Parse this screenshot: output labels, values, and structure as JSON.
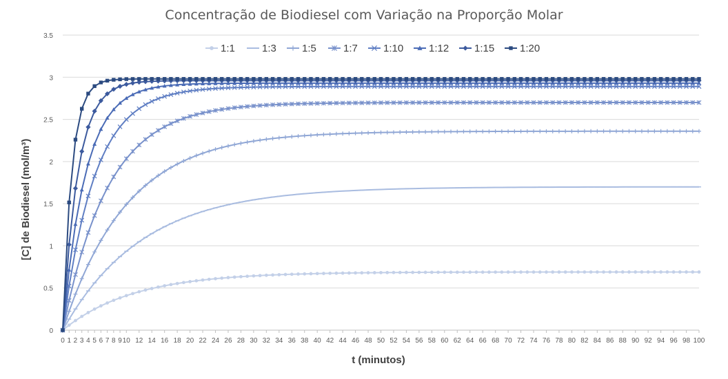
{
  "chart_data": {
    "type": "line",
    "title": "Concentração de Biodiesel com Variação na Proporção Molar",
    "xlabel": "t (minutos)",
    "ylabel": "[C] de Biodiesel (mol/m³)",
    "xlim": [
      0,
      100
    ],
    "ylim": [
      0,
      3.5
    ],
    "x_ticks": [
      0,
      1,
      2,
      3,
      4,
      5,
      6,
      7,
      8,
      9,
      10,
      12,
      14,
      16,
      18,
      20,
      22,
      24,
      26,
      28,
      30,
      32,
      34,
      36,
      38,
      40,
      42,
      44,
      46,
      48,
      50,
      52,
      54,
      56,
      58,
      60,
      62,
      64,
      66,
      68,
      70,
      72,
      74,
      76,
      78,
      80,
      82,
      84,
      86,
      88,
      90,
      92,
      94,
      96,
      98,
      100
    ],
    "y_ticks": [
      0,
      0.5,
      1,
      1.5,
      2,
      2.5,
      3,
      3.5
    ],
    "grid": "horizontal",
    "legend_position": "top",
    "sample_step_minutes": 1,
    "series": [
      {
        "name": "1:1",
        "marker": "circle",
        "color": "#c3d0e8",
        "plateau": 0.69,
        "rate": 0.09
      },
      {
        "name": "1:3",
        "marker": "dash",
        "color": "#a9bce0",
        "plateau": 1.7,
        "rate": 0.08
      },
      {
        "name": "1:5",
        "marker": "plus",
        "color": "#8fa6d5",
        "plateau": 2.36,
        "rate": 0.1
      },
      {
        "name": "1:7",
        "marker": "asterisk",
        "color": "#7891cb",
        "plateau": 2.7,
        "rate": 0.14
      },
      {
        "name": "1:10",
        "marker": "x",
        "color": "#5f7ec3",
        "plateau": 2.89,
        "rate": 0.2
      },
      {
        "name": "1:12",
        "marker": "triangle",
        "color": "#4a6bb6",
        "plateau": 2.93,
        "rate": 0.28
      },
      {
        "name": "1:15",
        "marker": "diamond",
        "color": "#3c5a9e",
        "plateau": 2.96,
        "rate": 0.42
      },
      {
        "name": "1:20",
        "marker": "square",
        "color": "#2b4a80",
        "plateau": 2.98,
        "rate": 0.71
      }
    ]
  }
}
